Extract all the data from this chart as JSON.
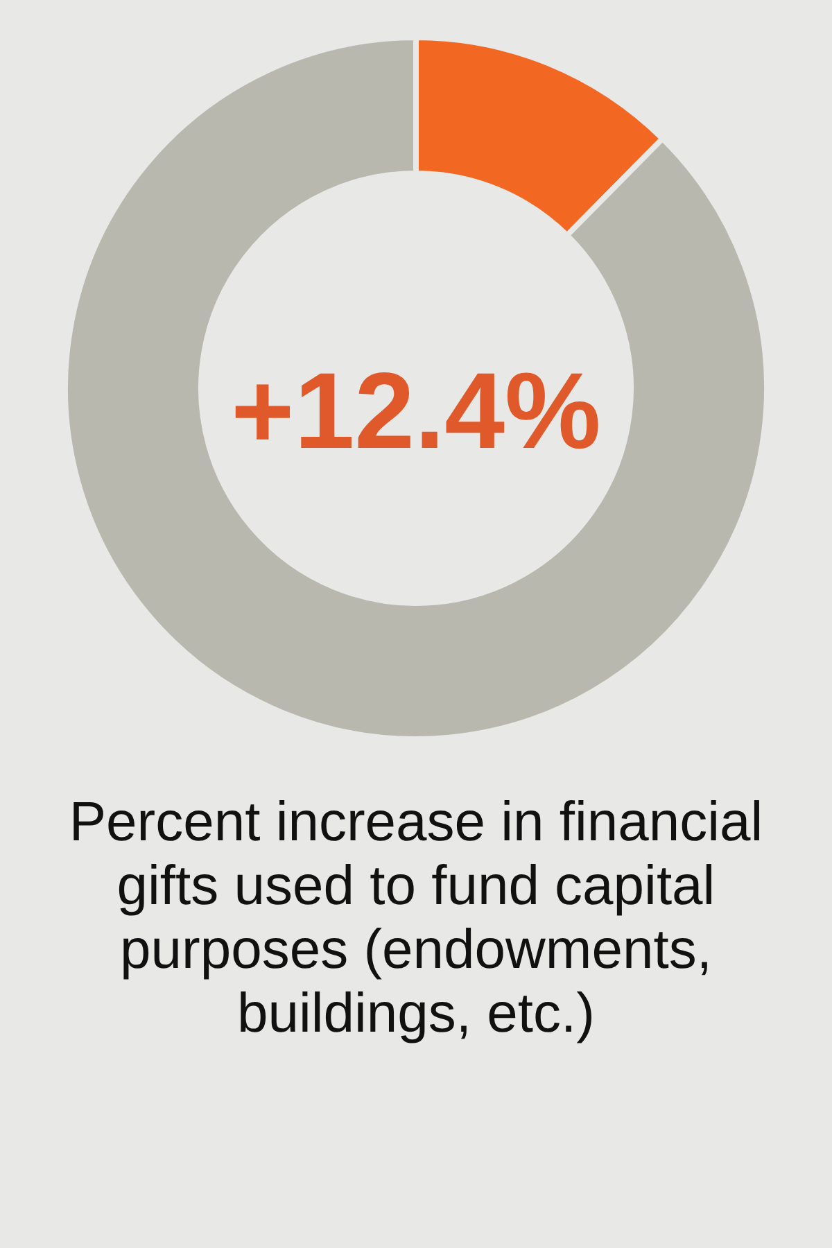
{
  "chart_data": {
    "type": "donut",
    "title": "Percent increase in financial gifts used to fund capital purposes (endowments, buildings, etc.)",
    "categories": [
      null,
      null
    ],
    "values": [
      12.4,
      87.6
    ],
    "colors": [
      "#f26722",
      "#b8b8ae"
    ],
    "annotations": [
      "+12.4%"
    ]
  }
}
